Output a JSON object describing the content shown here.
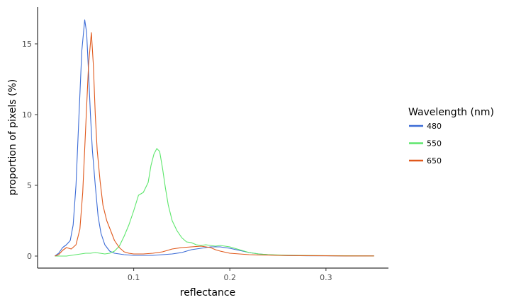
{
  "chart_data": {
    "type": "line",
    "xlabel": "reflectance",
    "ylabel": "proportion of pixels (%)",
    "xlim": [
      0.0,
      0.365
    ],
    "ylim": [
      -0.85,
      17.6
    ],
    "x_ticks": [
      {
        "value": 0.1,
        "label": "0.1"
      },
      {
        "value": 0.2,
        "label": "0.2"
      },
      {
        "value": 0.3,
        "label": "0.3"
      }
    ],
    "y_ticks": [
      {
        "value": 0,
        "label": "0"
      },
      {
        "value": 5,
        "label": "5"
      },
      {
        "value": 10,
        "label": "10"
      },
      {
        "value": 15,
        "label": "15"
      }
    ],
    "grid": false,
    "legend": {
      "title": "Wavelength (nm)",
      "position": "right"
    },
    "series": [
      {
        "name": "480",
        "color": "#3b6bd6",
        "x": [
          0.018,
          0.022,
          0.026,
          0.03,
          0.034,
          0.037,
          0.04,
          0.043,
          0.046,
          0.049,
          0.051,
          0.053,
          0.055,
          0.057,
          0.06,
          0.063,
          0.066,
          0.07,
          0.075,
          0.08,
          0.085,
          0.09,
          0.1,
          0.11,
          0.12,
          0.13,
          0.14,
          0.15,
          0.16,
          0.17,
          0.18,
          0.19,
          0.2,
          0.21,
          0.22,
          0.23,
          0.24,
          0.25,
          0.26,
          0.28,
          0.3,
          0.32,
          0.35
        ],
        "y": [
          0.0,
          0.2,
          0.6,
          0.8,
          1.1,
          2.2,
          5.0,
          9.8,
          14.5,
          16.7,
          15.8,
          13.0,
          10.0,
          7.5,
          5.0,
          2.8,
          1.6,
          0.8,
          0.35,
          0.2,
          0.15,
          0.1,
          0.05,
          0.05,
          0.05,
          0.1,
          0.15,
          0.25,
          0.45,
          0.55,
          0.65,
          0.65,
          0.55,
          0.4,
          0.25,
          0.15,
          0.1,
          0.06,
          0.04,
          0.02,
          0.02,
          0.01,
          0.01
        ]
      },
      {
        "name": "550",
        "color": "#5ce66b",
        "x": [
          0.018,
          0.025,
          0.03,
          0.035,
          0.04,
          0.045,
          0.05,
          0.055,
          0.06,
          0.065,
          0.07,
          0.075,
          0.08,
          0.085,
          0.09,
          0.095,
          0.1,
          0.105,
          0.11,
          0.115,
          0.118,
          0.121,
          0.124,
          0.127,
          0.13,
          0.133,
          0.136,
          0.14,
          0.145,
          0.15,
          0.155,
          0.16,
          0.165,
          0.17,
          0.175,
          0.18,
          0.185,
          0.19,
          0.195,
          0.2,
          0.205,
          0.21,
          0.22,
          0.23,
          0.24,
          0.25,
          0.26,
          0.28,
          0.3,
          0.32,
          0.35
        ],
        "y": [
          0.0,
          0.0,
          0.0,
          0.05,
          0.1,
          0.15,
          0.2,
          0.2,
          0.25,
          0.2,
          0.15,
          0.2,
          0.35,
          0.7,
          1.4,
          2.2,
          3.2,
          4.3,
          4.5,
          5.2,
          6.4,
          7.2,
          7.6,
          7.4,
          6.2,
          4.8,
          3.6,
          2.5,
          1.8,
          1.3,
          1.0,
          0.95,
          0.8,
          0.75,
          0.8,
          0.75,
          0.7,
          0.75,
          0.7,
          0.65,
          0.55,
          0.45,
          0.25,
          0.15,
          0.1,
          0.08,
          0.06,
          0.04,
          0.03,
          0.02,
          0.01
        ]
      },
      {
        "name": "650",
        "color": "#e0581b",
        "x": [
          0.018,
          0.022,
          0.026,
          0.03,
          0.035,
          0.04,
          0.044,
          0.047,
          0.05,
          0.053,
          0.056,
          0.058,
          0.06,
          0.062,
          0.065,
          0.068,
          0.072,
          0.076,
          0.08,
          0.085,
          0.09,
          0.095,
          0.1,
          0.11,
          0.12,
          0.13,
          0.14,
          0.15,
          0.16,
          0.17,
          0.18,
          0.185,
          0.19,
          0.2,
          0.21,
          0.22,
          0.23,
          0.24,
          0.25,
          0.26,
          0.28,
          0.3,
          0.32,
          0.35
        ],
        "y": [
          0.0,
          0.1,
          0.4,
          0.6,
          0.5,
          0.8,
          1.9,
          4.5,
          9.0,
          13.5,
          15.8,
          13.5,
          10.0,
          7.5,
          5.3,
          3.6,
          2.5,
          1.8,
          1.1,
          0.6,
          0.3,
          0.2,
          0.15,
          0.15,
          0.2,
          0.3,
          0.5,
          0.6,
          0.65,
          0.7,
          0.6,
          0.45,
          0.35,
          0.2,
          0.15,
          0.1,
          0.08,
          0.07,
          0.05,
          0.04,
          0.03,
          0.02,
          0.01,
          0.01
        ]
      }
    ]
  }
}
